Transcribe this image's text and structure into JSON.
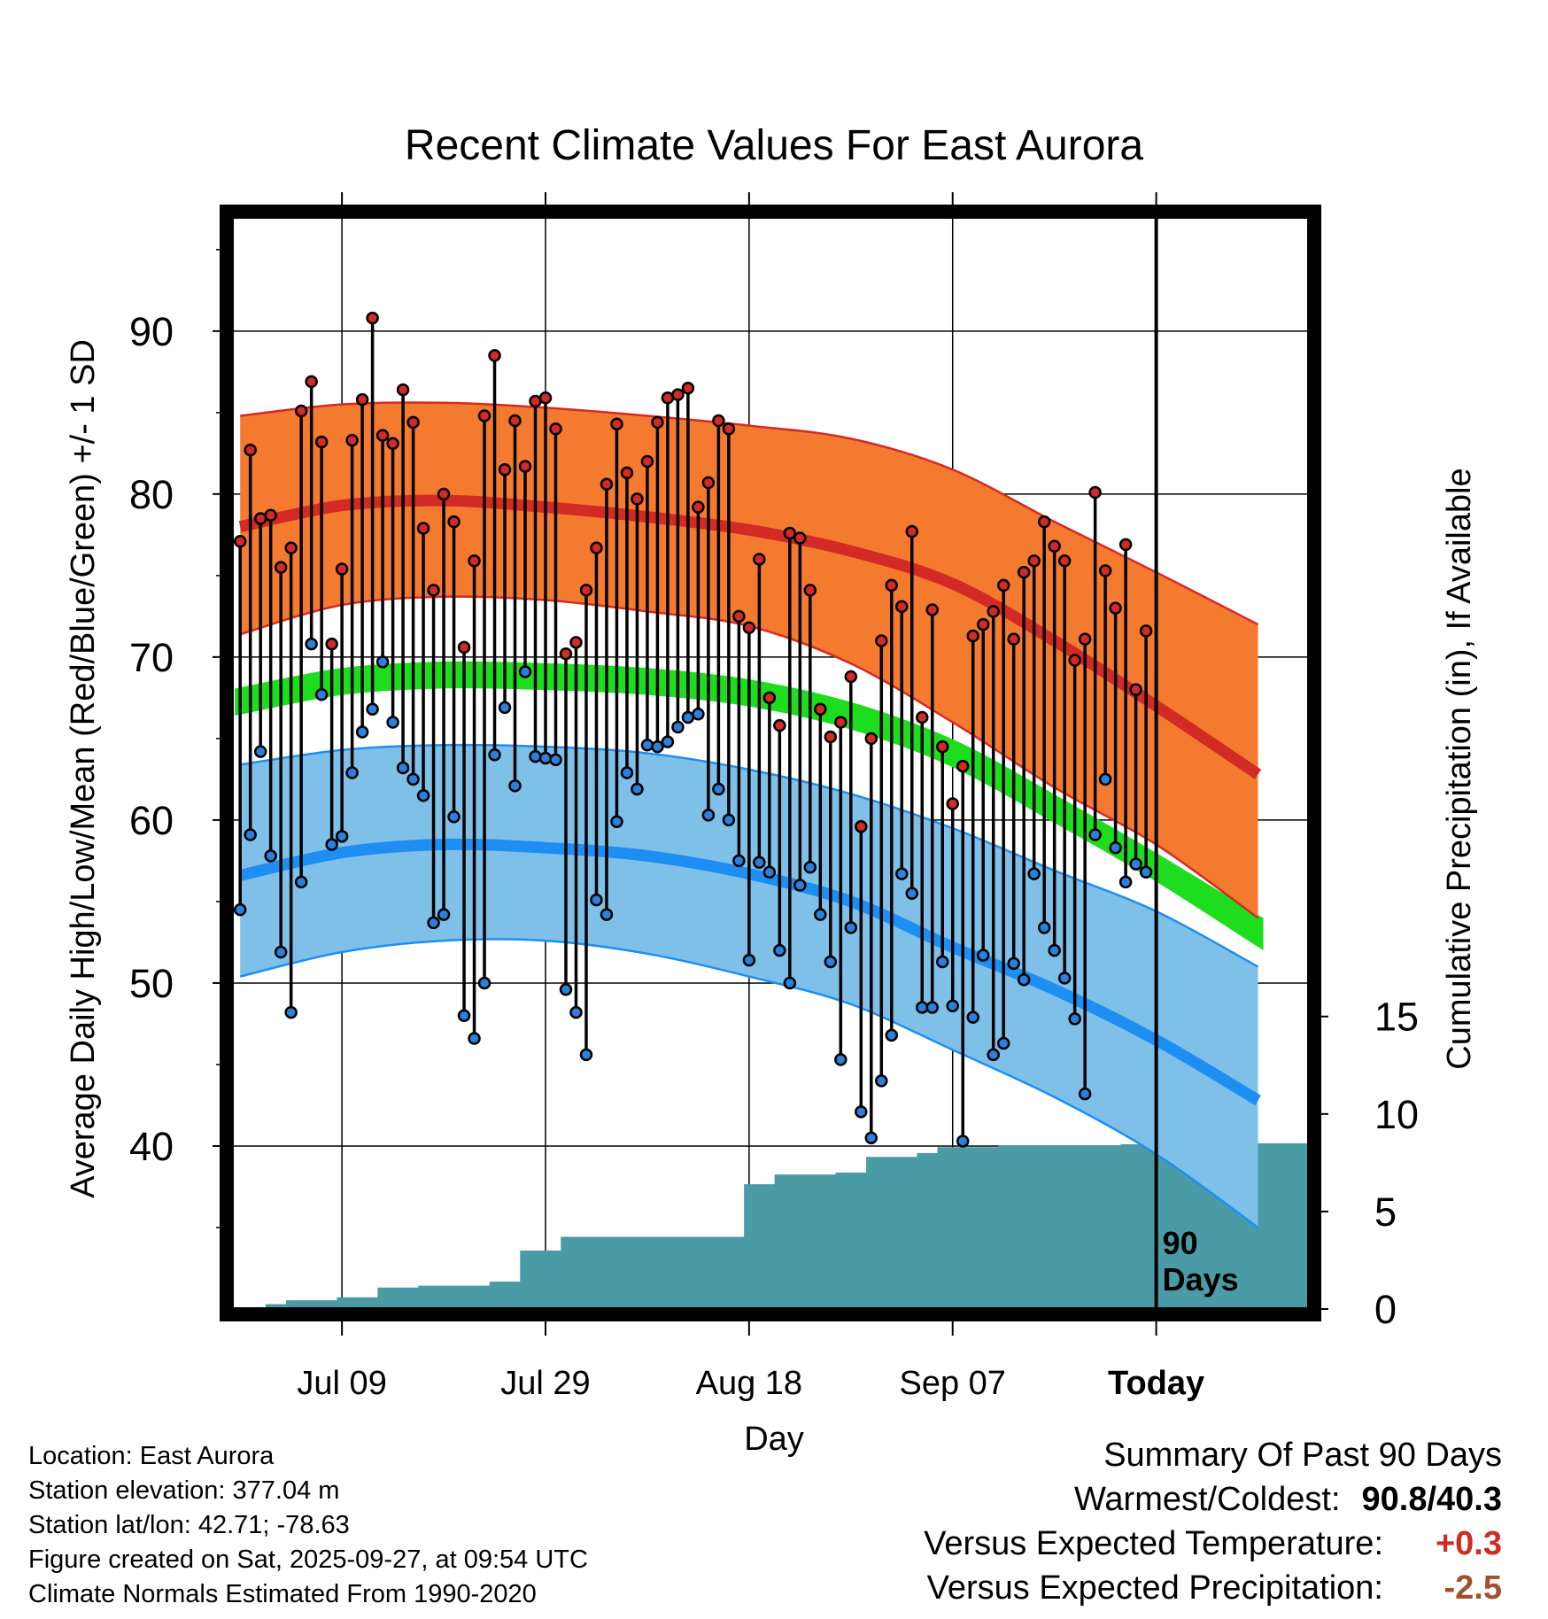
{
  "chart_data": {
    "type": "line",
    "title": "Recent Climate Values For East Aurora",
    "xlabel": "Day",
    "ylabel": "Average Daily High/Low/Mean (Red/Blue/Green) +/- 1 SD",
    "y2label": "Cumulative Precipitation (in), If Available",
    "xlim": [
      -0.8,
      105
    ],
    "ylim": [
      30,
      97
    ],
    "y2lim": [
      0,
      56
    ],
    "y_ticks": [
      40,
      50,
      60,
      70,
      80,
      90
    ],
    "y_tick_labels": [
      "40",
      "50",
      "60",
      "70",
      "80",
      "90"
    ],
    "y2_ticks": [
      0,
      5,
      10,
      15
    ],
    "y2_tick_labels": [
      "0",
      "5",
      "10",
      "15"
    ],
    "x_ticks": [
      10,
      30,
      50,
      70,
      90
    ],
    "x_tick_labels": [
      "Jul 09",
      "Jul 29",
      "Aug 18",
      "Sep 07",
      "Today"
    ],
    "today_index": 90,
    "today_label_line1": "90",
    "today_label_line2": "Days",
    "normals": {
      "x": [
        0,
        10,
        20,
        30,
        40,
        50,
        60,
        70,
        80,
        90,
        100
      ],
      "high_upper": [
        84.8,
        85.5,
        85.6,
        85.3,
        84.8,
        84.2,
        83.4,
        81.5,
        78.3,
        75.2,
        72.0
      ],
      "high_mean": [
        78.0,
        79.3,
        79.6,
        79.2,
        78.6,
        77.8,
        76.5,
        74.5,
        71.0,
        67.0,
        62.8
      ],
      "high_lower": [
        71.4,
        73.2,
        73.7,
        73.5,
        72.8,
        71.9,
        69.6,
        66.0,
        62.0,
        58.5,
        54.0
      ],
      "mean_upper": [
        67.8,
        69.0,
        69.4,
        69.3,
        69.0,
        68.3,
        66.9,
        64.6,
        61.2,
        57.6,
        53.8
      ],
      "mean_lower": [
        66.8,
        68.0,
        68.4,
        68.3,
        68.0,
        67.3,
        65.9,
        63.6,
        60.2,
        56.6,
        52.6
      ],
      "low_upper": [
        63.4,
        64.3,
        64.6,
        64.5,
        64.1,
        63.1,
        61.6,
        59.5,
        56.9,
        54.4,
        51.0
      ],
      "low_mean": [
        56.6,
        58.0,
        58.5,
        58.3,
        57.8,
        56.7,
        55.0,
        52.2,
        49.6,
        46.5,
        42.8
      ],
      "low_lower": [
        50.4,
        51.9,
        52.6,
        52.6,
        51.8,
        50.4,
        48.7,
        45.9,
        43.0,
        39.5,
        35.0
      ]
    },
    "series": [
      {
        "name": "Daily High",
        "values": [
          77.1,
          82.7,
          78.5,
          78.7,
          75.5,
          76.7,
          85.1,
          86.9,
          83.2,
          70.8,
          75.4,
          83.3,
          85.8,
          90.8,
          83.6,
          83.1,
          86.4,
          84.4,
          77.9,
          74.1,
          80.0,
          78.3,
          70.6,
          75.9,
          84.8,
          88.5,
          81.5,
          84.5,
          81.7,
          85.7,
          85.9,
          84.0,
          70.2,
          70.9,
          74.1,
          76.7,
          80.6,
          84.3,
          81.3,
          79.7,
          82.0,
          84.4,
          85.9,
          86.1,
          86.5,
          79.2,
          80.7,
          84.5,
          84.0,
          72.5,
          71.8,
          76.0,
          67.5,
          65.8,
          77.6,
          77.3,
          74.1,
          66.8,
          65.1,
          66.0,
          68.8,
          59.6,
          65.0,
          71.0,
          74.4,
          73.1,
          77.7,
          66.3,
          72.9,
          64.5,
          61.0,
          63.3,
          71.3,
          72.0,
          72.8,
          74.4,
          71.1,
          75.2,
          75.9,
          78.3,
          76.8,
          75.9,
          69.8,
          71.1,
          80.1,
          75.3,
          73.0,
          76.9,
          68.0,
          71.6
        ]
      },
      {
        "name": "Daily Low",
        "values": [
          54.5,
          59.1,
          64.2,
          57.8,
          51.9,
          48.2,
          56.2,
          70.8,
          67.7,
          58.5,
          59.0,
          62.9,
          65.4,
          66.8,
          69.7,
          66.0,
          63.2,
          62.5,
          61.5,
          53.7,
          54.2,
          60.2,
          48.0,
          46.6,
          50.0,
          64.0,
          66.9,
          62.1,
          69.1,
          63.9,
          63.8,
          63.7,
          49.6,
          48.2,
          45.6,
          55.1,
          54.2,
          59.9,
          62.9,
          61.9,
          64.6,
          64.5,
          64.8,
          65.7,
          66.3,
          66.5,
          60.3,
          61.9,
          60.0,
          57.5,
          51.4,
          57.4,
          56.8,
          52.0,
          50.0,
          56.0,
          57.1,
          54.2,
          51.3,
          45.3,
          53.4,
          42.1,
          40.5,
          44.0,
          46.8,
          56.7,
          55.5,
          48.5,
          48.5,
          51.3,
          48.6,
          40.3,
          47.9,
          51.7,
          45.6,
          46.3,
          51.2,
          50.2,
          56.7,
          53.4,
          52.0,
          50.3,
          47.8,
          43.2,
          59.1,
          62.5,
          58.3,
          56.2,
          57.3,
          56.8
        ]
      },
      {
        "name": "Cumulative Precipitation",
        "values": [
          0.0,
          0.0,
          0.0,
          0.25,
          0.25,
          0.45,
          0.45,
          0.45,
          0.45,
          0.45,
          0.6,
          0.6,
          0.6,
          0.6,
          1.1,
          1.1,
          1.1,
          1.1,
          1.2,
          1.2,
          1.2,
          1.2,
          1.2,
          1.2,
          1.2,
          1.4,
          1.4,
          1.4,
          3.0,
          3.0,
          3.0,
          3.0,
          3.7,
          3.7,
          3.7,
          3.7,
          3.7,
          3.7,
          3.7,
          3.7,
          3.7,
          3.7,
          3.7,
          3.7,
          3.7,
          3.7,
          3.7,
          3.7,
          3.7,
          3.7,
          6.4,
          6.4,
          6.4,
          6.9,
          6.9,
          6.9,
          6.9,
          6.9,
          6.9,
          7.0,
          7.0,
          7.0,
          7.8,
          7.8,
          7.8,
          7.8,
          7.8,
          8.0,
          8.0,
          8.3,
          8.3,
          8.3,
          8.3,
          8.3,
          8.3,
          8.4,
          8.4,
          8.4,
          8.4,
          8.4,
          8.4,
          8.4,
          8.4,
          8.4,
          8.4,
          8.4,
          8.4,
          8.45,
          8.45,
          8.5,
          8.5,
          8.5,
          8.5,
          8.5,
          8.5,
          8.5,
          8.5,
          8.5,
          8.5,
          8.5,
          8.5
        ]
      }
    ],
    "colors": {
      "high_band": "#f47a30",
      "high_edge": "#d52a24",
      "high_mean": "#d22a24",
      "mean_band": "#1edc1e",
      "low_band": "#7fc0e8",
      "low_edge": "#1e8ef2",
      "low_mean": "#1e8ef2",
      "precip": "#4a9ba5",
      "high_dot": "#d22a24",
      "low_dot": "#2a80dc"
    }
  },
  "metadata": {
    "location": "Location: East Aurora",
    "elevation": "Station elevation: 377.04 m",
    "latlon": "Station lat/lon: 42.71; -78.63",
    "created": "Figure created on Sat, 2025-09-27, at 09:54 UTC",
    "normals_period": "Climate Normals Estimated From 1990-2020"
  },
  "summary": {
    "title": "Summary Of Past 90 Days",
    "warm_cold_label": "Warmest/Coldest:",
    "warm_cold_value": "90.8/40.3",
    "temp_label": "Versus Expected Temperature:",
    "temp_value": "+0.3",
    "temp_color": "#d22a24",
    "precip_label": "Versus Expected Precipitation:",
    "precip_value": "-2.5",
    "precip_color": "#a0522d"
  }
}
